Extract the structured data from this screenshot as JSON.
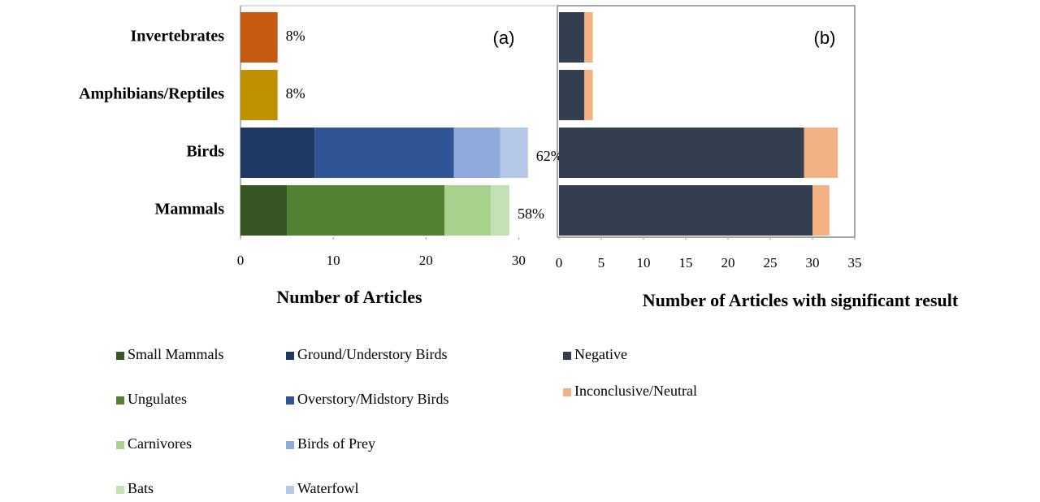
{
  "chart_data": [
    {
      "type": "stacked-bar-horizontal",
      "annotation": "(a)",
      "xlabel": "Number of Articles",
      "categories": [
        "Invertebrates",
        "Amphibians/Reptiles",
        "Birds",
        "Mammals"
      ],
      "category_labels": [
        "8%",
        "8%",
        "62%",
        "58%"
      ],
      "xlim": [
        0,
        34
      ],
      "xticks": [
        0,
        10,
        20,
        30
      ],
      "series": [
        {
          "color": "#c55a11",
          "values": [
            4,
            null,
            null,
            null
          ]
        },
        {
          "color": "#bf9000",
          "values": [
            null,
            4,
            null,
            null
          ]
        },
        {
          "name": "Small Mammals",
          "color": "#375623",
          "values": [
            null,
            null,
            null,
            5
          ]
        },
        {
          "name": "Ungulates",
          "color": "#548235",
          "values": [
            null,
            null,
            null,
            17
          ]
        },
        {
          "name": "Carnivores",
          "color": "#a9d18e",
          "values": [
            null,
            null,
            null,
            5
          ]
        },
        {
          "name": "Bats",
          "color": "#c5e0b4",
          "values": [
            null,
            null,
            null,
            2
          ]
        },
        {
          "name": "Ground/Understory Birds",
          "color": "#203864",
          "values": [
            null,
            null,
            8,
            null
          ]
        },
        {
          "name": "Overstory/Midstory Birds",
          "color": "#2f5597",
          "values": [
            null,
            null,
            15,
            null
          ]
        },
        {
          "name": "Birds of Prey",
          "color": "#8faadc",
          "values": [
            null,
            null,
            5,
            null
          ]
        },
        {
          "name": "Waterfowl",
          "color": "#b4c7e7",
          "values": [
            null,
            null,
            3,
            null
          ]
        }
      ]
    },
    {
      "type": "stacked-bar-horizontal",
      "annotation": "(b)",
      "xlabel": "Number of Articles with significant result",
      "xlim": [
        0,
        35
      ],
      "xticks": [
        0,
        5,
        10,
        15,
        20,
        25,
        30,
        35
      ],
      "series": [
        {
          "name": "Negative",
          "color": "#333f50",
          "values": [
            3,
            3,
            29,
            30
          ]
        },
        {
          "name": "Inconclusive/Neutral",
          "color": "#f4b183",
          "values": [
            1,
            1,
            4,
            2
          ]
        }
      ]
    }
  ]
}
